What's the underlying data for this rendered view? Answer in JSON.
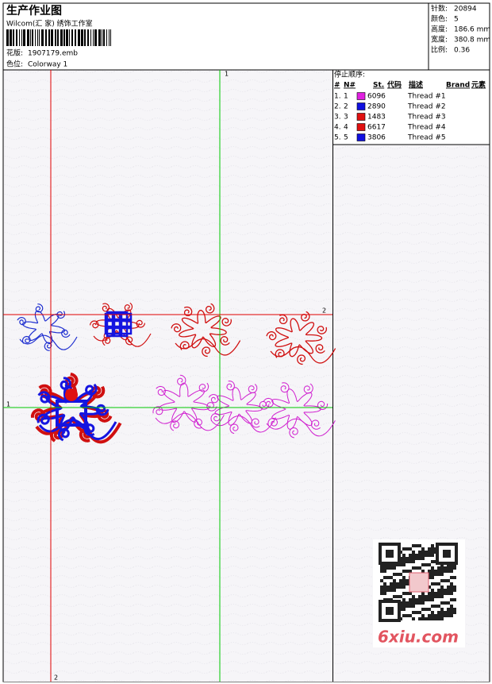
{
  "header": {
    "title": "生产作业图",
    "company": "Wilcom(汇 家) 绣饰工作室",
    "design_label": "花版:",
    "design": "1907179.emb",
    "colorway_label": "色位:",
    "colorway": "Colorway 1"
  },
  "info": [
    {
      "label": "针数:",
      "value": "20894"
    },
    {
      "label": "颜色:",
      "value": "5"
    },
    {
      "label": "高度:",
      "value": "186.6 mm"
    },
    {
      "label": "宽度:",
      "value": "380.8 mm"
    },
    {
      "label": "比例:",
      "value": "0.36"
    }
  ],
  "stop_sequence": {
    "title": "停止顺序:",
    "columns": [
      "#",
      "N#",
      "St.",
      "代码",
      "描述",
      "Brand",
      "元素"
    ],
    "rows": [
      {
        "num": "1.",
        "needle": "1",
        "color": "#e020e0",
        "stitches": "6096",
        "description": "Thread #1"
      },
      {
        "num": "2.",
        "needle": "2",
        "color": "#1010e0",
        "stitches": "2890",
        "description": "Thread #2"
      },
      {
        "num": "3.",
        "needle": "3",
        "color": "#e01010",
        "stitches": "1483",
        "description": "Thread #3"
      },
      {
        "num": "4.",
        "needle": "4",
        "color": "#e01010",
        "stitches": "6617",
        "description": "Thread #4"
      },
      {
        "num": "5.",
        "needle": "5",
        "color": "#1010e0",
        "stitches": "3806",
        "description": "Thread #5"
      }
    ]
  },
  "guides": [
    {
      "label": "1",
      "color": "#00c800",
      "orientation": "vertical"
    },
    {
      "label": "2",
      "color": "#e00000",
      "orientation": "horizontal"
    },
    {
      "label": "1",
      "color": "#00c800",
      "orientation": "horizontal"
    },
    {
      "label": "2",
      "color": "#e00000",
      "orientation": "vertical"
    }
  ],
  "watermark": "6xiu.com"
}
